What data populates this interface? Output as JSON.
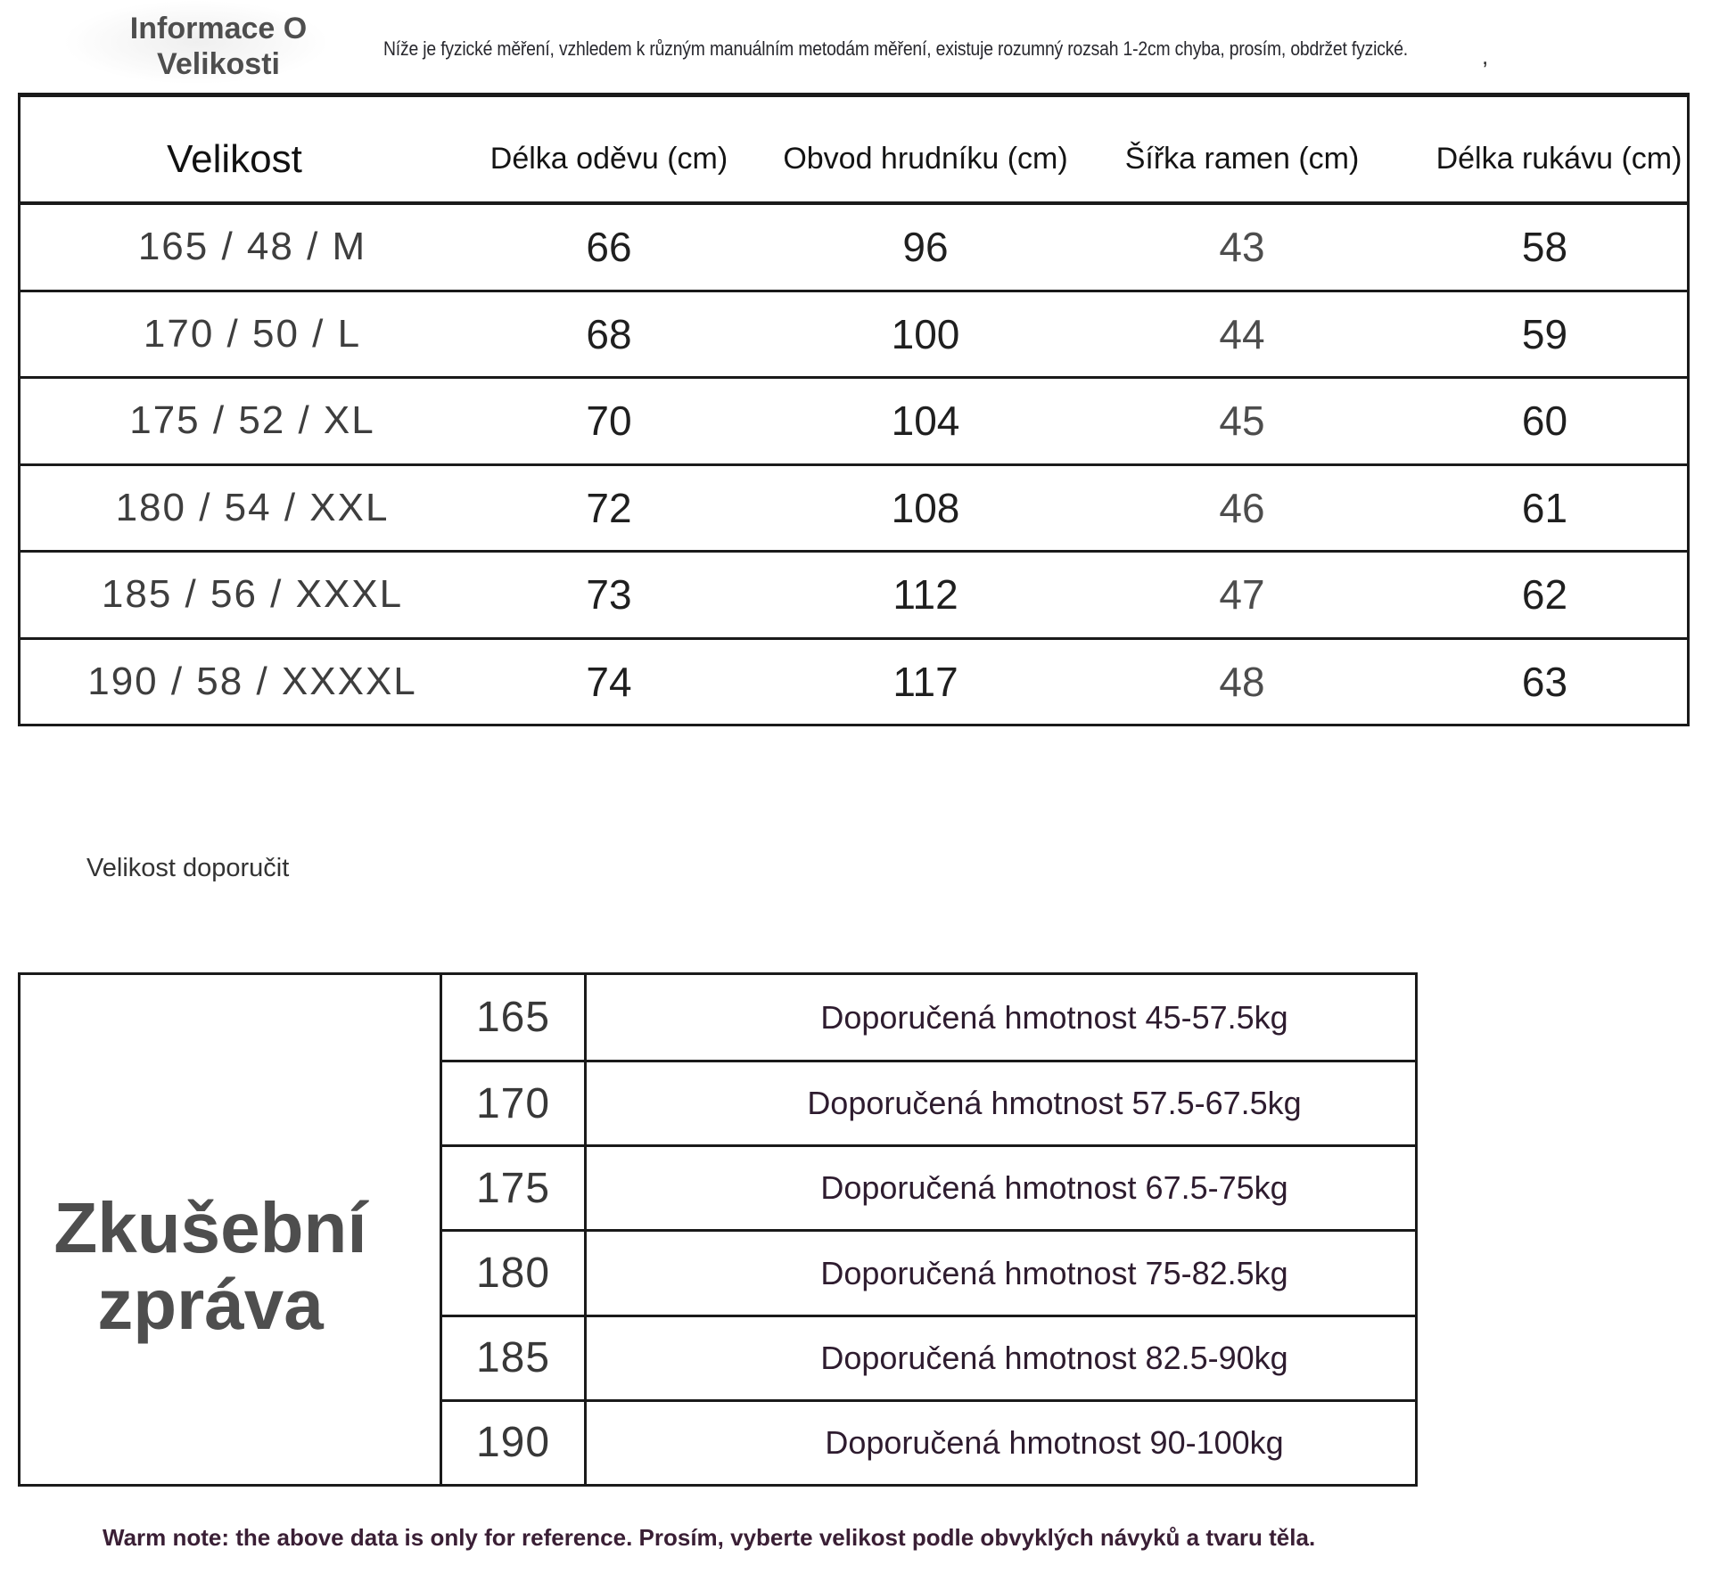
{
  "colors": {
    "ink": "#1f1f1f",
    "line": "#1a1a1a",
    "gray-title": "#4e4e4e",
    "note-ink": "#28282e",
    "label-ink": "#3e3e3e",
    "shoulder-ink": "#4d4d4d",
    "purple": "#2e1c2f",
    "warm": "#3a1f35",
    "bg": "#ffffff"
  },
  "header": {
    "title_line1": "Informace O",
    "title_line2": "Velikosti",
    "note": "Níže je fyzické měření, vzhledem k různým manuálním metodám měření, existuje rozumný rozsah 1-2cm chyba, prosím, obdržet fyzické.",
    "note_mark": ","
  },
  "size_table": {
    "columns": [
      "Velikost",
      "Délka oděvu (cm)",
      "Obvod hrudníku (cm)",
      "Šířka ramen (cm)",
      "Délka rukávu (cm)"
    ],
    "rows": [
      {
        "size": "165 / 48 / M",
        "length": "66",
        "chest": "96",
        "shoulder": "43",
        "sleeve": "58"
      },
      {
        "size": "170 / 50 / L",
        "length": "68",
        "chest": "100",
        "shoulder": "44",
        "sleeve": "59"
      },
      {
        "size": "175 / 52 / XL",
        "length": "70",
        "chest": "104",
        "shoulder": "45",
        "sleeve": "60"
      },
      {
        "size": "180 / 54 / XXL",
        "length": "72",
        "chest": "108",
        "shoulder": "46",
        "sleeve": "61"
      },
      {
        "size": "185 / 56 / XXXL",
        "length": "73",
        "chest": "112",
        "shoulder": "47",
        "sleeve": "62"
      },
      {
        "size": "190 / 58 / XXXXL",
        "length": "74",
        "chest": "117",
        "shoulder": "48",
        "sleeve": "63"
      }
    ]
  },
  "recommend_label": "Velikost doporučit",
  "report_table": {
    "left_title_line1": "Zkušební",
    "left_title_line2": "zpráva",
    "rows": [
      {
        "height": "165",
        "weight": "Doporučená hmotnost 45-57.5kg"
      },
      {
        "height": "170",
        "weight": "Doporučená hmotnost 57.5-67.5kg"
      },
      {
        "height": "175",
        "weight": "Doporučená hmotnost 67.5-75kg"
      },
      {
        "height": "180",
        "weight": "Doporučená hmotnost 75-82.5kg"
      },
      {
        "height": "185",
        "weight": "Doporučená hmotnost 82.5-90kg"
      },
      {
        "height": "190",
        "weight": "Doporučená hmotnost 90-100kg"
      }
    ]
  },
  "footer": {
    "warm_note": "Warm note: the above data is only for reference. Prosím, vyberte velikost podle obvyklých návyků a tvaru těla."
  }
}
